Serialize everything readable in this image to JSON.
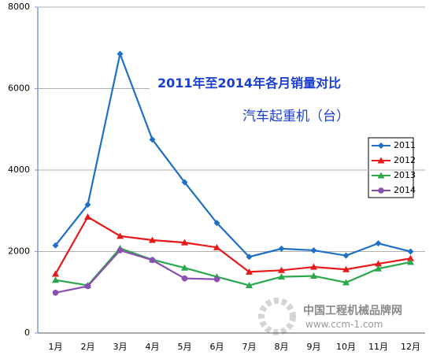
{
  "chart_data": {
    "type": "line",
    "title": "2011年至2014年各月销量对比",
    "subtitle": "汽车起重机（台）",
    "watermark": "中国工程机械品牌网",
    "watermark_url": "www.ccm-1.com",
    "categories": [
      "1月",
      "2月",
      "3月",
      "4月",
      "5月",
      "6月",
      "7月",
      "8月",
      "9月",
      "10月",
      "11月",
      "12月"
    ],
    "series": [
      {
        "name": "2011",
        "color": "#1f6fc5",
        "marker": "diamond",
        "values": [
          2150,
          3150,
          6850,
          4750,
          3700,
          2700,
          1870,
          2070,
          2030,
          1900,
          2200,
          2000
        ]
      },
      {
        "name": "2012",
        "color": "#e8191b",
        "marker": "triangle",
        "values": [
          1450,
          2850,
          2380,
          2280,
          2220,
          2100,
          1500,
          1540,
          1620,
          1560,
          1700,
          1830
        ]
      },
      {
        "name": "2013",
        "color": "#2aa84a",
        "marker": "triangle",
        "values": [
          1300,
          1170,
          2080,
          1800,
          1600,
          1380,
          1170,
          1380,
          1400,
          1240,
          1580,
          1740
        ]
      },
      {
        "name": "2014",
        "color": "#8a4fb0",
        "marker": "circle",
        "values": [
          990,
          1150,
          2030,
          1790,
          1340,
          1320,
          null,
          null,
          null,
          null,
          null,
          null
        ]
      }
    ],
    "ylim": [
      0,
      8000
    ],
    "yticks": [
      0,
      2000,
      4000,
      6000,
      8000
    ],
    "grid": true
  }
}
